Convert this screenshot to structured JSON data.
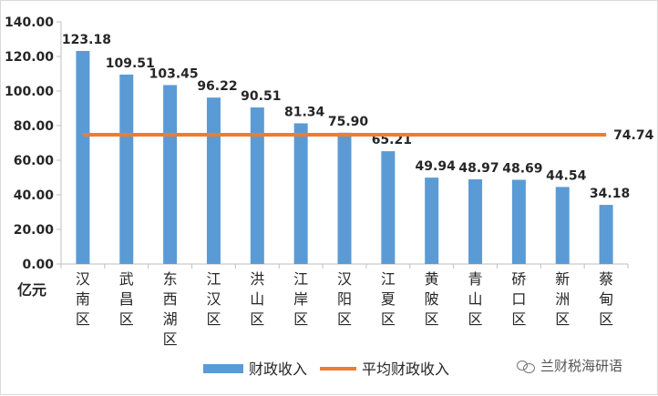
{
  "chart_data": {
    "type": "bar",
    "ylabel": "亿元",
    "ylim": [
      0,
      140
    ],
    "yticks": [
      0,
      20,
      40,
      60,
      80,
      100,
      120,
      140
    ],
    "ytick_labels": [
      "0.00",
      "20.00",
      "40.00",
      "60.00",
      "80.00",
      "100.00",
      "120.00",
      "140.00"
    ],
    "categories": [
      "汉南区",
      "武昌区",
      "东西湖区",
      "江汉区",
      "洪山区",
      "江岸区",
      "汉阳区",
      "江夏区",
      "黄陂区",
      "青山区",
      "硚口区",
      "新洲区",
      "蔡甸区"
    ],
    "series": [
      {
        "name": "财政收入",
        "type": "bar",
        "values": [
          123.18,
          109.51,
          103.45,
          96.22,
          90.51,
          81.34,
          75.9,
          65.21,
          49.94,
          48.97,
          48.69,
          44.54,
          34.18
        ],
        "labels": [
          "123.18",
          "109.51",
          "103.45",
          "96.22",
          "90.51",
          "81.34",
          "75.90",
          "65.21",
          "49.94",
          "48.97",
          "48.69",
          "44.54",
          "34.18"
        ],
        "color": "#5b9bd5"
      },
      {
        "name": "平均财政收入",
        "type": "line",
        "value": 74.74,
        "label": "74.74",
        "color": "#ed7d31"
      }
    ],
    "legend_position": "bottom",
    "grid": false
  },
  "watermark": {
    "text": "兰财税海研语",
    "icon": "wechat-icon"
  }
}
